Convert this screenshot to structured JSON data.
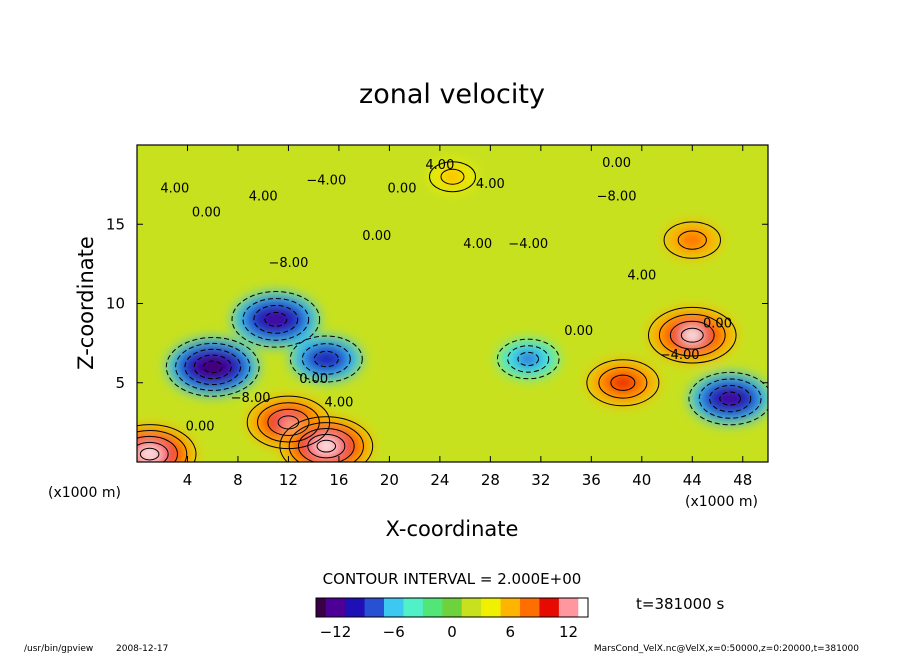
{
  "chart_data": {
    "type": "heatmap",
    "title": "zonal velocity",
    "xlabel": "X-coordinate",
    "ylabel": "Z-coordinate",
    "x_unit": "(x1000 m)",
    "y_unit": "(x1000 m)",
    "xlim": [
      0,
      50
    ],
    "ylim": [
      0,
      20
    ],
    "x_ticks": [
      "4",
      "8",
      "12",
      "16",
      "20",
      "24",
      "28",
      "32",
      "36",
      "40",
      "44",
      "48"
    ],
    "y_ticks": [
      "5",
      "10",
      "15"
    ],
    "contour_interval_text": "CONTOUR INTERVAL = 2.000E+00",
    "colorbar": {
      "min": -14,
      "max": 14,
      "ticks": [
        "−12",
        "−6",
        "0",
        "6",
        "12"
      ]
    },
    "contour_labels": [
      "4.00",
      "0.00",
      "4.00",
      "−4.00",
      "0.00",
      "4.00",
      "−8.00",
      "0.00",
      "4.00",
      "−4.00",
      "−8.00",
      "4.00",
      "0.00",
      "0.00",
      "−4.00",
      "0.00",
      "4.00",
      "−8.00",
      "0.00",
      "4.00",
      "0.00"
    ],
    "field_features": [
      {
        "x": 1,
        "z": 0.5,
        "u": 14,
        "desc": "strong positive flow near lower-left boundary"
      },
      {
        "x": 12,
        "z": 2.5,
        "u": 12,
        "desc": "positive jet"
      },
      {
        "x": 15,
        "z": 1,
        "u": 14,
        "desc": "surface positive maximum"
      },
      {
        "x": 6,
        "z": 6,
        "u": -14,
        "desc": "negative tilted band (lower)"
      },
      {
        "x": 11,
        "z": 9,
        "u": -13,
        "desc": "negative tilted band (mid)"
      },
      {
        "x": 15,
        "z": 6.5,
        "u": -10,
        "desc": "negative eddy"
      },
      {
        "x": 31,
        "z": 6.5,
        "u": -8,
        "desc": "negative eddy"
      },
      {
        "x": 38.5,
        "z": 5,
        "u": 10,
        "desc": "positive eddy"
      },
      {
        "x": 44,
        "z": 8,
        "u": 13,
        "desc": "positive eddy"
      },
      {
        "x": 44,
        "z": 14,
        "u": 7,
        "desc": "positive region upper right"
      },
      {
        "x": 47,
        "z": 4,
        "u": -12,
        "desc": "negative region lower right"
      },
      {
        "x": 25,
        "z": 18,
        "u": 5,
        "desc": "positive layer near top"
      }
    ]
  },
  "time_label": "t=381000 s",
  "footer": {
    "program": "/usr/bin/gpview",
    "date": "2008-12-17",
    "source": "MarsCond_VelX.nc@VelX,x=0:50000,z=0:20000,t=381000"
  },
  "colors": {
    "colormap": [
      "#3a0046",
      "#4d0096",
      "#1e10b4",
      "#2850d2",
      "#3cc8f0",
      "#50f0c8",
      "#50e678",
      "#6ed23c",
      "#c8e11e",
      "#f0f000",
      "#ffb400",
      "#ff6e00",
      "#e60a00",
      "#ff96a0",
      "#ffffff"
    ],
    "line": "#000000"
  }
}
